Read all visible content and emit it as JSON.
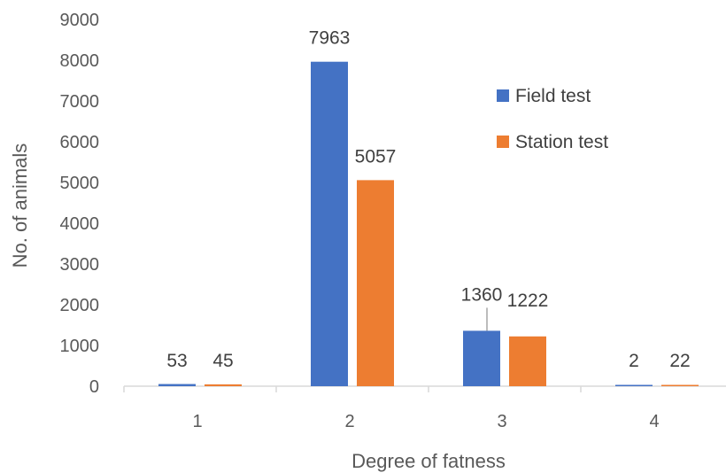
{
  "chart_data": {
    "type": "bar",
    "title": "",
    "xlabel": "Degree of fatness",
    "ylabel": "No. of animals",
    "categories": [
      "1",
      "2",
      "3",
      "4"
    ],
    "ylim": [
      0,
      9000
    ],
    "yticks": [
      0,
      1000,
      2000,
      3000,
      4000,
      5000,
      6000,
      7000,
      8000,
      9000
    ],
    "grid": false,
    "legend_position": "top-right",
    "series": [
      {
        "name": "Field test",
        "color": "#4472C4",
        "values": [
          53,
          7963,
          1360,
          2
        ],
        "labels": [
          "53",
          "7963",
          "1360",
          "2"
        ]
      },
      {
        "name": "Station test",
        "color": "#ED7D31",
        "values": [
          45,
          5057,
          1222,
          22
        ],
        "labels": [
          "45",
          "5057",
          "1222",
          "22"
        ]
      }
    ]
  }
}
